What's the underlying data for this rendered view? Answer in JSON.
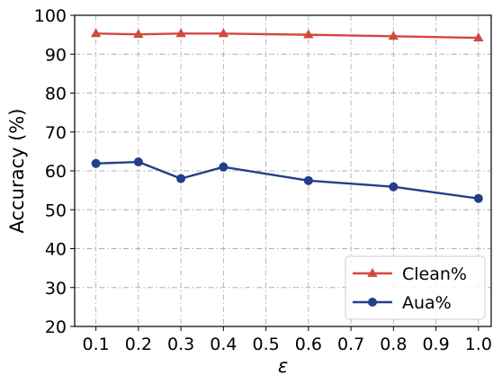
{
  "chart_data": {
    "type": "line",
    "x": [
      0.1,
      0.2,
      0.3,
      0.4,
      0.6,
      0.8,
      1.0
    ],
    "xticks": [
      "0.1",
      "0.2",
      "0.3",
      "0.4",
      "0.5",
      "0.6",
      "0.7",
      "0.8",
      "0.9",
      "1.0"
    ],
    "yticks": [
      "20",
      "30",
      "40",
      "50",
      "60",
      "70",
      "80",
      "90",
      "100"
    ],
    "xlim": [
      0.05,
      1.03
    ],
    "ylim": [
      20,
      100
    ],
    "xlabel": "ε",
    "ylabel": "Accuracy (%)",
    "grid": true,
    "grid_style": "dash-dot",
    "legend_position": "lower-right",
    "series": [
      {
        "name": "Clean%",
        "marker": "triangle",
        "color": "#d1493f",
        "values": [
          95.3,
          95.1,
          95.3,
          95.3,
          95.0,
          94.6,
          94.2
        ]
      },
      {
        "name": "Aua%",
        "marker": "circle",
        "color": "#233e8b",
        "values": [
          61.9,
          62.3,
          58.0,
          61.0,
          57.5,
          55.9,
          52.9
        ]
      }
    ]
  }
}
